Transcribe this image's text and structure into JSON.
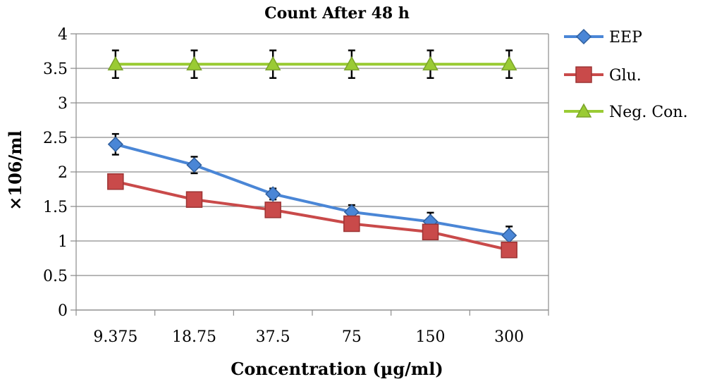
{
  "chart_data": {
    "type": "line",
    "title": "Count After 48 h",
    "xlabel": "Concentration (µg/ml)",
    "ylabel": "×106/ml",
    "categories": [
      "9.375",
      "18.75",
      "37.5",
      "75",
      "150",
      "300"
    ],
    "ylim": [
      0,
      4
    ],
    "yticks": [
      "0",
      "0.5",
      "1",
      "1.5",
      "2",
      "2.5",
      "3",
      "3.5",
      "4"
    ],
    "grid": true,
    "legend_position": "right",
    "series": [
      {
        "name": "EEP",
        "color": "#4a86d6",
        "marker": "diamond",
        "values": [
          2.4,
          2.1,
          1.68,
          1.42,
          1.28,
          1.08
        ],
        "errors": [
          0.15,
          0.12,
          0.08,
          0.1,
          0.13,
          0.13
        ]
      },
      {
        "name": "Glu.",
        "color": "#c94a4a",
        "marker": "square",
        "values": [
          1.86,
          1.6,
          1.45,
          1.25,
          1.13,
          0.87
        ],
        "errors": [
          0.0,
          0.06,
          0.05,
          0.0,
          0.0,
          0.0
        ]
      },
      {
        "name": "Neg. Con.",
        "color": "#9acb34",
        "marker": "triangle",
        "values": [
          3.56,
          3.56,
          3.56,
          3.56,
          3.56,
          3.56
        ],
        "errors": [
          0.2,
          0.2,
          0.2,
          0.2,
          0.2,
          0.2
        ]
      }
    ]
  }
}
